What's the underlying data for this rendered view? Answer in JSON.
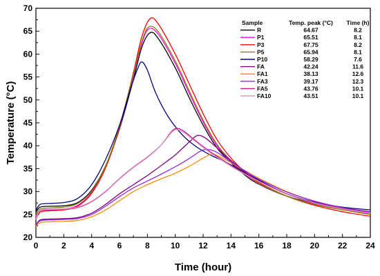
{
  "chart_data": {
    "type": "line",
    "title": "",
    "xlabel": "Time (hour)",
    "ylabel": "Temperature (°C)",
    "xlim": [
      0,
      24
    ],
    "ylim": [
      20,
      70
    ],
    "xticks": [
      0,
      2,
      4,
      6,
      8,
      10,
      12,
      14,
      16,
      18,
      20,
      22,
      24
    ],
    "yticks": [
      20,
      25,
      30,
      35,
      40,
      45,
      50,
      55,
      60,
      65,
      70
    ],
    "grid": false,
    "legend": {
      "placement": "top-right",
      "headers": [
        "Sample",
        "Temp. peak (°C)",
        "Time (h)"
      ]
    },
    "series": [
      {
        "name": "R",
        "color": "#000000",
        "peak": "64.67",
        "time": "8.2",
        "points": [
          [
            0,
            25.5
          ],
          [
            0.3,
            26.6
          ],
          [
            1,
            26.8
          ],
          [
            2,
            26.9
          ],
          [
            3,
            27.6
          ],
          [
            4,
            30.3
          ],
          [
            5,
            35.6
          ],
          [
            6,
            43.7
          ],
          [
            7,
            54.5
          ],
          [
            7.6,
            61.5
          ],
          [
            8.2,
            64.67
          ],
          [
            8.8,
            63.3
          ],
          [
            10,
            57.0
          ],
          [
            11,
            50.5
          ],
          [
            12,
            44.5
          ],
          [
            13,
            39.5
          ],
          [
            14,
            36.3
          ],
          [
            15,
            33.6
          ],
          [
            16,
            31.6
          ],
          [
            18,
            29.0
          ],
          [
            20,
            27.5
          ],
          [
            22,
            26.3
          ],
          [
            24,
            25.5
          ]
        ]
      },
      {
        "name": "P1",
        "color": "#ff00ff",
        "peak": "65.51",
        "time": "8.1",
        "points": [
          [
            0,
            24.5
          ],
          [
            0.3,
            25.8
          ],
          [
            1,
            26.0
          ],
          [
            2,
            26.2
          ],
          [
            3,
            27.0
          ],
          [
            4,
            29.8
          ],
          [
            5,
            35.4
          ],
          [
            6,
            44.0
          ],
          [
            7,
            55.3
          ],
          [
            7.6,
            62.3
          ],
          [
            8.1,
            65.51
          ],
          [
            8.8,
            64.3
          ],
          [
            10,
            58.0
          ],
          [
            11,
            51.5
          ],
          [
            12,
            45.2
          ],
          [
            13,
            40.0
          ],
          [
            14,
            36.5
          ],
          [
            15,
            33.8
          ],
          [
            16,
            31.7
          ],
          [
            18,
            29.0
          ],
          [
            20,
            27.3
          ],
          [
            22,
            26.1
          ],
          [
            24,
            25.2
          ]
        ]
      },
      {
        "name": "P3",
        "color": "#ff0000",
        "peak": "67.75",
        "time": "8.2",
        "points": [
          [
            0,
            24.0
          ],
          [
            0.3,
            25.5
          ],
          [
            1,
            25.8
          ],
          [
            2,
            26.0
          ],
          [
            3,
            26.8
          ],
          [
            4,
            29.6
          ],
          [
            5,
            35.2
          ],
          [
            6,
            44.0
          ],
          [
            7,
            56.0
          ],
          [
            7.6,
            63.8
          ],
          [
            8.2,
            67.75
          ],
          [
            8.8,
            66.5
          ],
          [
            10,
            60.0
          ],
          [
            11,
            53.5
          ],
          [
            12,
            47.0
          ],
          [
            13,
            41.3
          ],
          [
            14,
            37.3
          ],
          [
            15,
            34.3
          ],
          [
            16,
            32.0
          ],
          [
            18,
            29.0
          ],
          [
            20,
            27.0
          ],
          [
            22,
            25.6
          ],
          [
            24,
            24.6
          ]
        ]
      },
      {
        "name": "P5",
        "color": "#808000",
        "peak": "65.94",
        "time": "8.1",
        "points": [
          [
            0,
            24.8
          ],
          [
            0.3,
            26.2
          ],
          [
            1,
            26.4
          ],
          [
            2,
            26.6
          ],
          [
            3,
            27.4
          ],
          [
            4,
            30.1
          ],
          [
            5,
            35.6
          ],
          [
            6,
            44.3
          ],
          [
            7,
            55.6
          ],
          [
            7.6,
            62.7
          ],
          [
            8.1,
            65.94
          ],
          [
            8.8,
            64.8
          ],
          [
            10,
            58.5
          ],
          [
            11,
            52.0
          ],
          [
            12,
            45.6
          ],
          [
            13,
            40.3
          ],
          [
            14,
            36.7
          ],
          [
            15,
            34.0
          ],
          [
            16,
            31.8
          ],
          [
            18,
            29.0
          ],
          [
            20,
            27.2
          ],
          [
            22,
            26.0
          ],
          [
            24,
            25.0
          ]
        ]
      },
      {
        "name": "P10",
        "color": "#000080",
        "peak": "58.29",
        "time": "7.6",
        "points": [
          [
            0,
            25.8
          ],
          [
            0.3,
            27.2
          ],
          [
            1,
            27.4
          ],
          [
            2,
            27.6
          ],
          [
            3,
            28.5
          ],
          [
            4,
            31.5
          ],
          [
            5,
            37.0
          ],
          [
            6,
            44.5
          ],
          [
            6.8,
            52.5
          ],
          [
            7.3,
            56.8
          ],
          [
            7.6,
            58.29
          ],
          [
            8.0,
            56.5
          ],
          [
            8.6,
            51.5
          ],
          [
            9.5,
            46.3
          ],
          [
            10.5,
            42.4
          ],
          [
            11.5,
            39.8
          ],
          [
            12.5,
            38.0
          ],
          [
            13.5,
            36.6
          ],
          [
            14.5,
            35.0
          ],
          [
            16,
            32.5
          ],
          [
            18,
            29.5
          ],
          [
            20,
            27.7
          ],
          [
            22,
            26.6
          ],
          [
            24,
            26.0
          ]
        ]
      },
      {
        "name": "FA",
        "color": "#800080",
        "peak": "42.24",
        "time": "11.6",
        "points": [
          [
            0,
            22.6
          ],
          [
            0.3,
            23.8
          ],
          [
            1,
            24.0
          ],
          [
            2,
            24.1
          ],
          [
            3,
            24.3
          ],
          [
            4,
            25.3
          ],
          [
            5,
            27.2
          ],
          [
            6,
            29.5
          ],
          [
            7,
            31.5
          ],
          [
            8,
            33.5
          ],
          [
            9,
            35.7
          ],
          [
            10,
            38.0
          ],
          [
            11,
            40.8
          ],
          [
            11.6,
            42.24
          ],
          [
            12.2,
            41.6
          ],
          [
            13,
            39.5
          ],
          [
            14,
            36.8
          ],
          [
            15,
            34.3
          ],
          [
            16,
            32.3
          ],
          [
            18,
            29.5
          ],
          [
            20,
            27.6
          ],
          [
            22,
            26.4
          ],
          [
            24,
            25.6
          ]
        ]
      },
      {
        "name": "FA1",
        "color": "#ff8c00",
        "peak": "38.13",
        "time": "12.6",
        "points": [
          [
            0,
            22.3
          ],
          [
            0.3,
            23.2
          ],
          [
            1,
            23.4
          ],
          [
            2,
            23.5
          ],
          [
            3,
            23.7
          ],
          [
            4,
            24.5
          ],
          [
            5,
            26.0
          ],
          [
            6,
            28.0
          ],
          [
            7,
            30.0
          ],
          [
            8,
            31.5
          ],
          [
            9,
            32.8
          ],
          [
            10,
            34.0
          ],
          [
            11,
            35.5
          ],
          [
            12,
            37.3
          ],
          [
            12.6,
            38.13
          ],
          [
            13.2,
            37.6
          ],
          [
            14,
            36.3
          ],
          [
            15,
            34.6
          ],
          [
            16,
            32.9
          ],
          [
            18,
            30.0
          ],
          [
            20,
            27.9
          ],
          [
            22,
            26.5
          ],
          [
            24,
            25.6
          ]
        ]
      },
      {
        "name": "FA3",
        "color": "#8a2be2",
        "peak": "39.17",
        "time": "12.3",
        "points": [
          [
            0,
            22.6
          ],
          [
            0.3,
            23.6
          ],
          [
            1,
            23.8
          ],
          [
            2,
            23.9
          ],
          [
            3,
            24.1
          ],
          [
            4,
            25.0
          ],
          [
            5,
            26.8
          ],
          [
            6,
            28.9
          ],
          [
            7,
            30.8
          ],
          [
            8,
            32.3
          ],
          [
            9,
            33.8
          ],
          [
            10,
            35.4
          ],
          [
            11,
            37.2
          ],
          [
            11.8,
            38.8
          ],
          [
            12.3,
            39.17
          ],
          [
            12.9,
            38.7
          ],
          [
            14,
            36.5
          ],
          [
            15,
            34.5
          ],
          [
            16,
            32.7
          ],
          [
            18,
            29.9
          ],
          [
            20,
            27.9
          ],
          [
            22,
            26.5
          ],
          [
            24,
            25.6
          ]
        ]
      },
      {
        "name": "FA5",
        "color": "#c71585",
        "peak": "43.76",
        "time": "10.1",
        "points": [
          [
            0,
            23.8
          ],
          [
            0.3,
            25.8
          ],
          [
            1,
            26.0
          ],
          [
            2,
            26.1
          ],
          [
            3,
            26.5
          ],
          [
            4,
            27.8
          ],
          [
            5,
            30.0
          ],
          [
            6,
            32.8
          ],
          [
            7,
            35.3
          ],
          [
            8,
            37.5
          ],
          [
            9,
            40.2
          ],
          [
            9.7,
            43.0
          ],
          [
            10.1,
            43.76
          ],
          [
            10.6,
            43.2
          ],
          [
            11.5,
            41.0
          ],
          [
            12.5,
            38.7
          ],
          [
            13.5,
            36.7
          ],
          [
            14.5,
            34.8
          ],
          [
            16,
            32.3
          ],
          [
            18,
            29.5
          ],
          [
            20,
            27.6
          ],
          [
            22,
            26.3
          ],
          [
            24,
            25.4
          ]
        ]
      },
      {
        "name": "FA10",
        "color": "#d49ac0",
        "peak": "43.51",
        "time": "10.1",
        "points": [
          [
            0,
            24.0
          ],
          [
            0.3,
            25.9
          ],
          [
            1,
            26.1
          ],
          [
            2,
            26.2
          ],
          [
            3,
            26.6
          ],
          [
            4,
            27.9
          ],
          [
            5,
            30.1
          ],
          [
            6,
            32.9
          ],
          [
            7,
            35.4
          ],
          [
            8,
            37.6
          ],
          [
            9,
            40.2
          ],
          [
            9.7,
            42.8
          ],
          [
            10.1,
            43.51
          ],
          [
            10.6,
            42.9
          ],
          [
            11.5,
            40.8
          ],
          [
            12.5,
            38.5
          ],
          [
            13.5,
            36.5
          ],
          [
            14.5,
            34.6
          ],
          [
            16,
            32.2
          ],
          [
            18,
            29.4
          ],
          [
            20,
            27.5
          ],
          [
            22,
            26.2
          ],
          [
            24,
            25.3
          ]
        ]
      }
    ]
  }
}
